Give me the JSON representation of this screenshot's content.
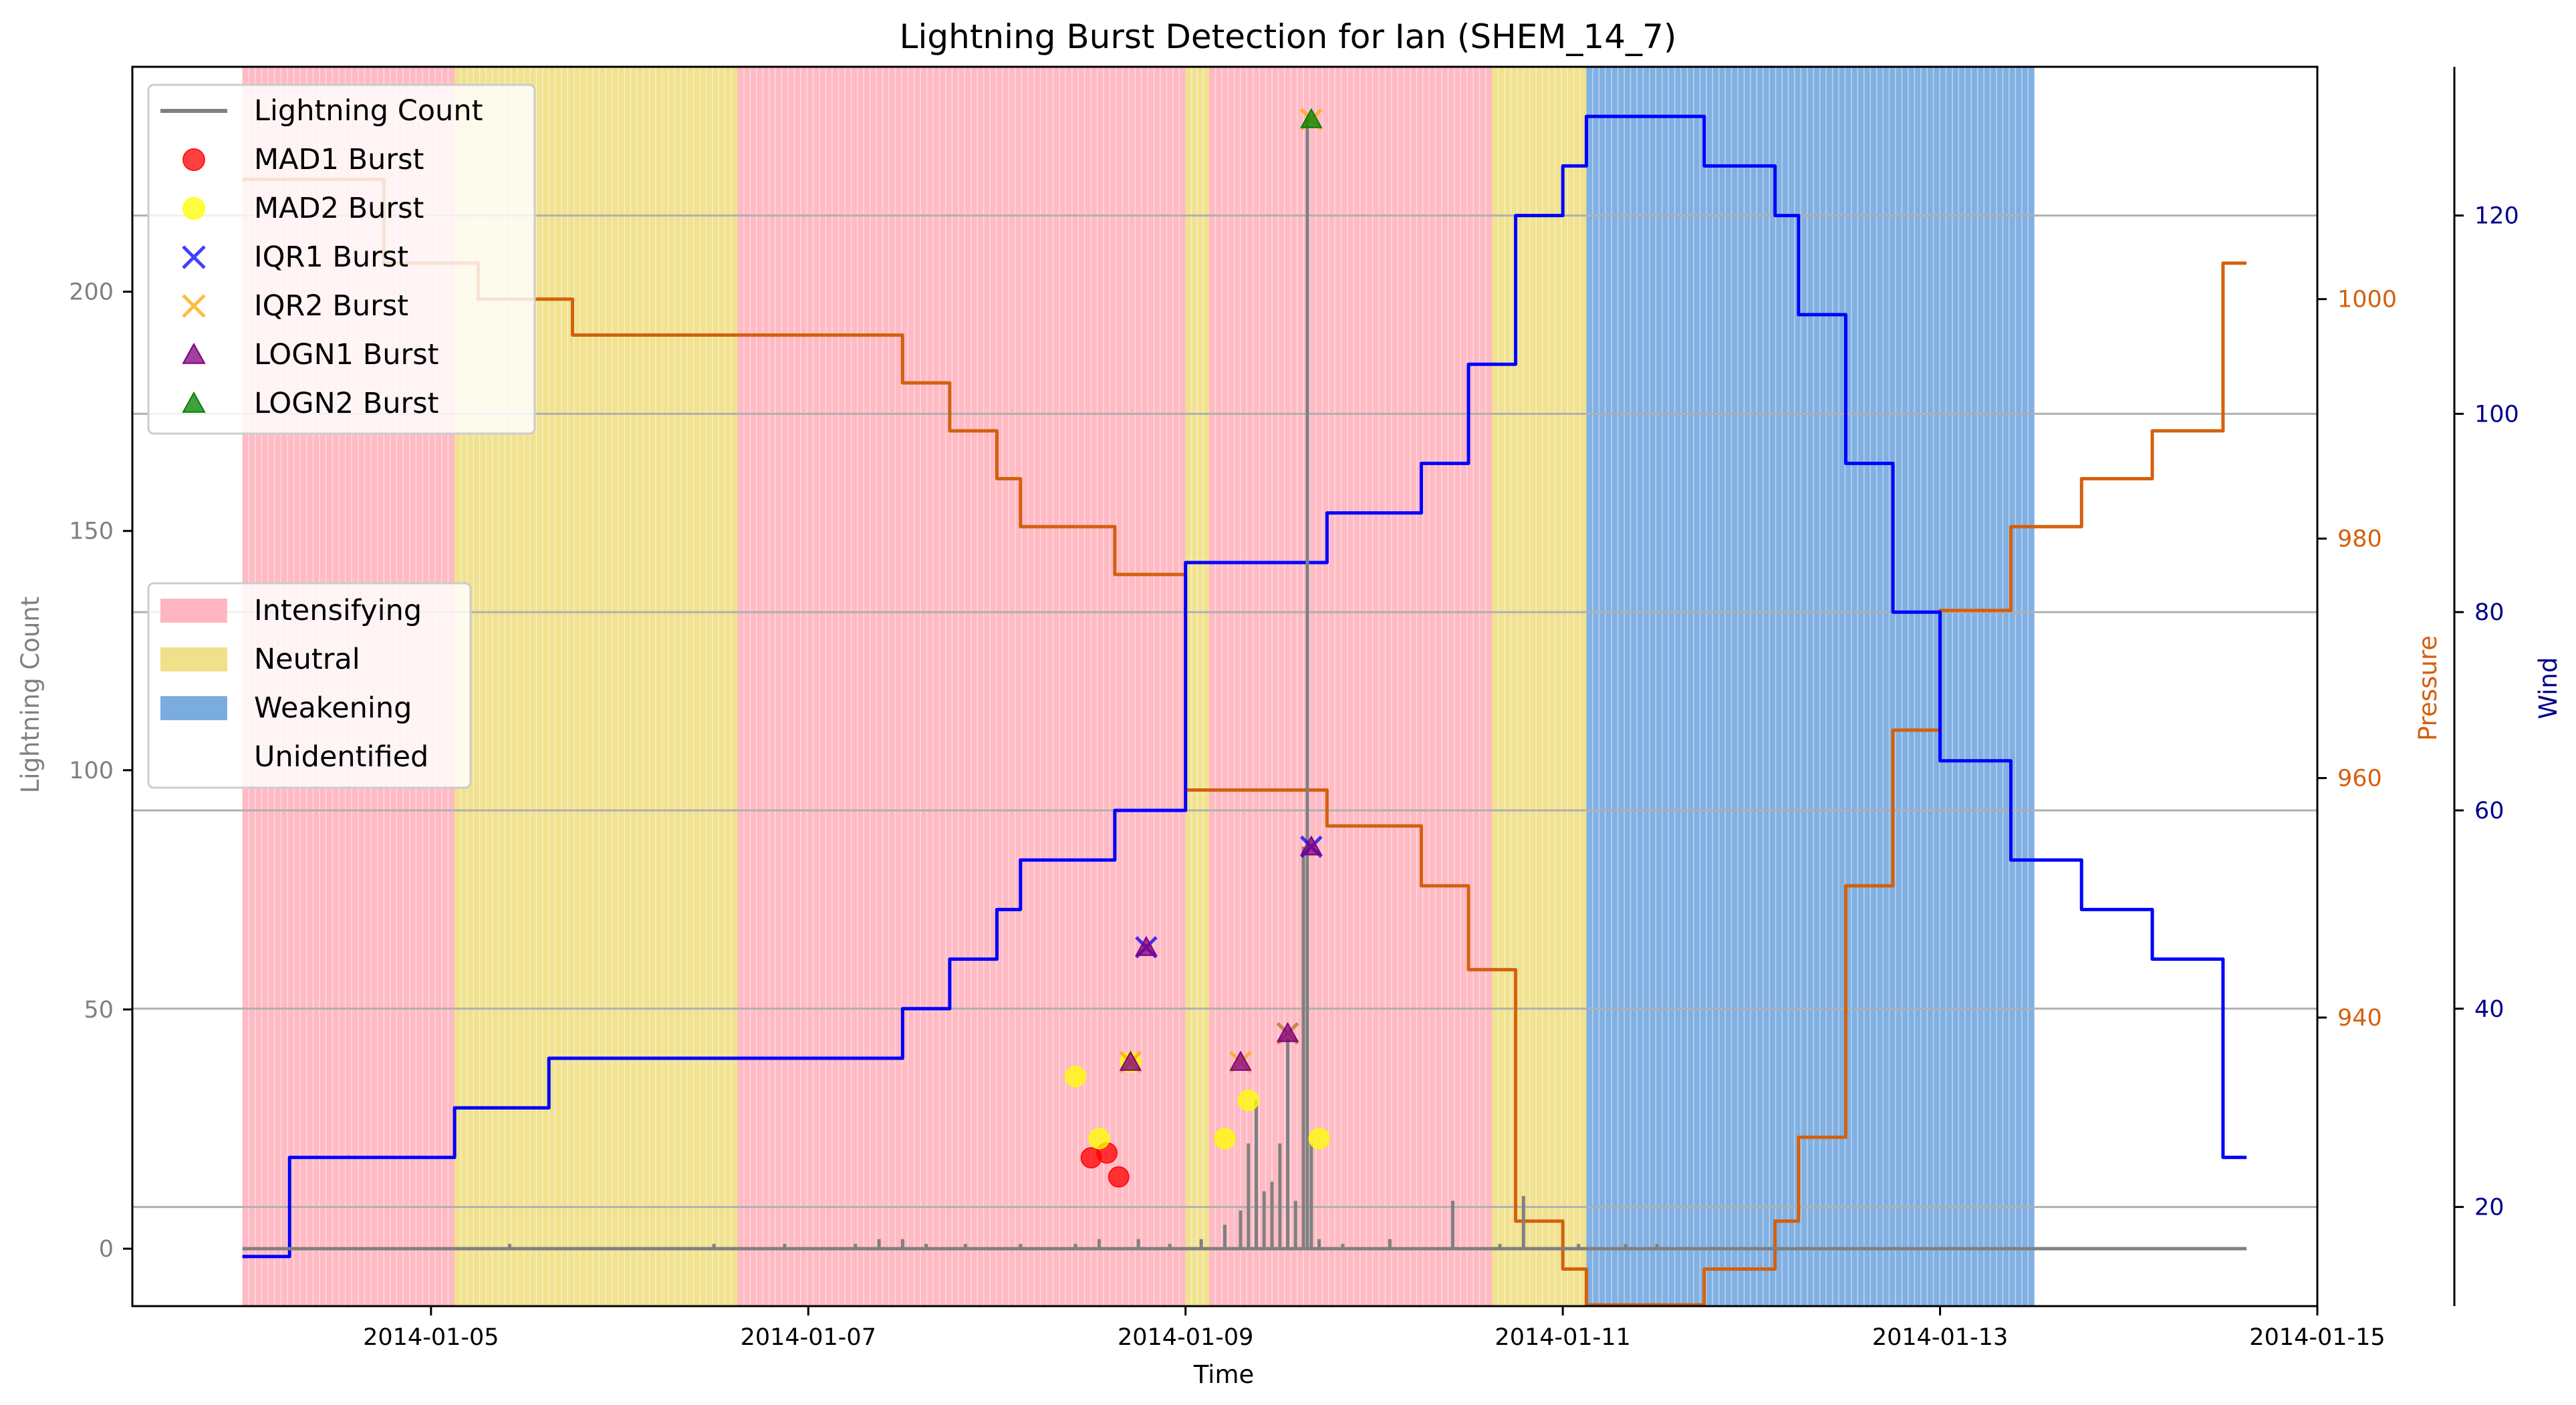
{
  "chart_data": {
    "type": "line",
    "title": "Lightning Burst Detection for Ian (SHEM_14_7)",
    "xlabel": "Time",
    "ylabel_left": "Lightning Count",
    "ylabel_pressure": "Pressure",
    "ylabel_wind": "Wind",
    "xlim": [
      "2014-01-03 10:00",
      "2014-01-15 00:00"
    ],
    "xticks": [
      "2014-01-05",
      "2014-01-07",
      "2014-01-09",
      "2014-01-11",
      "2014-01-13",
      "2014-01-15"
    ],
    "ylim_left": [
      -12,
      247
    ],
    "yticks_left": [
      0,
      50,
      100,
      150,
      200
    ],
    "ylim_pressure": [
      915.9,
      1019.4
    ],
    "yticks_pressure": [
      940,
      960,
      980,
      1000
    ],
    "ylim_wind": [
      10,
      135
    ],
    "yticks_wind": [
      20,
      40,
      60,
      80,
      100,
      120
    ],
    "grid": "horizontal",
    "colors": {
      "lightning": "#808080",
      "pressure": "#d4600d",
      "wind": "#0000ff",
      "pressure_axis": "#d4600d",
      "wind_axis": "#00008b",
      "intensifying": "#ffb6c1",
      "neutral": "#f0e08a",
      "weakening": "#7aace0"
    },
    "phase_legend": [
      "Intensifying",
      "Neutral",
      "Weakening",
      "Unidentified"
    ],
    "phases": [
      {
        "phase": "Intensifying",
        "start": "2014-01-04 00:00",
        "end": "2014-01-05 03:00"
      },
      {
        "phase": "Neutral",
        "start": "2014-01-05 03:00",
        "end": "2014-01-06 15:00"
      },
      {
        "phase": "Intensifying",
        "start": "2014-01-06 15:00",
        "end": "2014-01-09 00:00"
      },
      {
        "phase": "Neutral",
        "start": "2014-01-09 00:00",
        "end": "2014-01-09 03:00"
      },
      {
        "phase": "Intensifying",
        "start": "2014-01-09 03:00",
        "end": "2014-01-10 15:00"
      },
      {
        "phase": "Neutral",
        "start": "2014-01-10 15:00",
        "end": "2014-01-11 03:00"
      },
      {
        "phase": "Weakening",
        "start": "2014-01-11 03:00",
        "end": "2014-01-13 12:00"
      }
    ],
    "series": [
      {
        "name": "Pressure",
        "axis": "pressure",
        "points": [
          [
            "2014-01-04 00:00",
            1010
          ],
          [
            "2014-01-04 18:00",
            1003
          ],
          [
            "2014-01-05 06:00",
            1000
          ],
          [
            "2014-01-05 18:00",
            997
          ],
          [
            "2014-01-07 12:00",
            993
          ],
          [
            "2014-01-07 18:00",
            989
          ],
          [
            "2014-01-08 00:00",
            985
          ],
          [
            "2014-01-08 03:00",
            981
          ],
          [
            "2014-01-08 15:00",
            977
          ],
          [
            "2014-01-09 00:00",
            959
          ],
          [
            "2014-01-09 18:00",
            956
          ],
          [
            "2014-01-10 06:00",
            951
          ],
          [
            "2014-01-10 12:00",
            944
          ],
          [
            "2014-01-10 18:00",
            923
          ],
          [
            "2014-01-11 00:00",
            919
          ],
          [
            "2014-01-11 03:00",
            916
          ],
          [
            "2014-01-11 18:00",
            919
          ],
          [
            "2014-01-12 03:00",
            923
          ],
          [
            "2014-01-12 06:00",
            930
          ],
          [
            "2014-01-12 12:00",
            951
          ],
          [
            "2014-01-12 18:00",
            964
          ],
          [
            "2014-01-13 00:00",
            974
          ],
          [
            "2014-01-13 09:00",
            981
          ],
          [
            "2014-01-13 18:00",
            985
          ],
          [
            "2014-01-14 03:00",
            989
          ],
          [
            "2014-01-14 12:00",
            1003
          ],
          [
            "2014-01-14 15:00",
            1003
          ]
        ]
      },
      {
        "name": "Wind",
        "axis": "wind",
        "points": [
          [
            "2014-01-04 00:00",
            15
          ],
          [
            "2014-01-04 06:00",
            25
          ],
          [
            "2014-01-05 03:00",
            30
          ],
          [
            "2014-01-05 15:00",
            35
          ],
          [
            "2014-01-07 12:00",
            40
          ],
          [
            "2014-01-07 18:00",
            45
          ],
          [
            "2014-01-08 00:00",
            50
          ],
          [
            "2014-01-08 03:00",
            55
          ],
          [
            "2014-01-08 15:00",
            60
          ],
          [
            "2014-01-09 00:00",
            85
          ],
          [
            "2014-01-09 18:00",
            90
          ],
          [
            "2014-01-10 06:00",
            95
          ],
          [
            "2014-01-10 12:00",
            105
          ],
          [
            "2014-01-10 18:00",
            120
          ],
          [
            "2014-01-11 00:00",
            125
          ],
          [
            "2014-01-11 03:00",
            130
          ],
          [
            "2014-01-11 18:00",
            125
          ],
          [
            "2014-01-12 03:00",
            120
          ],
          [
            "2014-01-12 06:00",
            110
          ],
          [
            "2014-01-12 12:00",
            95
          ],
          [
            "2014-01-12 18:00",
            80
          ],
          [
            "2014-01-13 00:00",
            65
          ],
          [
            "2014-01-13 09:00",
            55
          ],
          [
            "2014-01-13 18:00",
            50
          ],
          [
            "2014-01-14 03:00",
            45
          ],
          [
            "2014-01-14 12:00",
            25
          ],
          [
            "2014-01-14 15:00",
            25
          ]
        ]
      },
      {
        "name": "Lightning Count",
        "axis": "left",
        "baseline": 0,
        "spikes": [
          [
            "2014-01-05 10:00",
            1
          ],
          [
            "2014-01-06 12:00",
            1
          ],
          [
            "2014-01-06 21:00",
            1
          ],
          [
            "2014-01-07 06:00",
            1
          ],
          [
            "2014-01-07 09:00",
            2
          ],
          [
            "2014-01-07 12:00",
            2
          ],
          [
            "2014-01-07 15:00",
            1
          ],
          [
            "2014-01-07 20:00",
            1
          ],
          [
            "2014-01-08 03:00",
            1
          ],
          [
            "2014-01-08 10:00",
            1
          ],
          [
            "2014-01-08 13:00",
            2
          ],
          [
            "2014-01-08 18:00",
            2
          ],
          [
            "2014-01-08 22:00",
            1
          ],
          [
            "2014-01-09 02:00",
            2
          ],
          [
            "2014-01-09 05:00",
            5
          ],
          [
            "2014-01-09 07:00",
            8
          ],
          [
            "2014-01-09 08:00",
            22
          ],
          [
            "2014-01-09 09:00",
            31
          ],
          [
            "2014-01-09 10:00",
            12
          ],
          [
            "2014-01-09 11:00",
            14
          ],
          [
            "2014-01-09 12:00",
            22
          ],
          [
            "2014-01-09 13:00",
            44
          ],
          [
            "2014-01-09 14:00",
            10
          ],
          [
            "2014-01-09 15:00",
            84
          ],
          [
            "2014-01-09 15:30",
            236
          ],
          [
            "2014-01-09 16:00",
            22
          ],
          [
            "2014-01-09 17:00",
            2
          ],
          [
            "2014-01-09 20:00",
            1
          ],
          [
            "2014-01-10 02:00",
            2
          ],
          [
            "2014-01-10 10:00",
            10
          ],
          [
            "2014-01-10 16:00",
            1
          ],
          [
            "2014-01-10 19:00",
            11
          ],
          [
            "2014-01-11 02:00",
            1
          ],
          [
            "2014-01-11 08:00",
            1
          ],
          [
            "2014-01-11 12:00",
            1
          ]
        ]
      }
    ],
    "burst_legend": [
      "Lightning Count",
      "MAD1 Burst",
      "MAD2 Burst",
      "IQR1 Burst",
      "IQR2 Burst",
      "LOGN1 Burst",
      "LOGN2 Burst"
    ],
    "bursts": [
      {
        "name": "MAD1 Burst",
        "marker": "circle",
        "color": "#ff0000",
        "points": [
          [
            "2014-01-08 12:00",
            19
          ],
          [
            "2014-01-08 14:00",
            20
          ],
          [
            "2014-01-08 15:30",
            15
          ]
        ]
      },
      {
        "name": "MAD2 Burst",
        "marker": "circle",
        "color": "#ffff00",
        "points": [
          [
            "2014-01-08 10:00",
            36
          ],
          [
            "2014-01-08 13:00",
            23
          ],
          [
            "2014-01-08 17:00",
            39
          ],
          [
            "2014-01-09 05:00",
            23
          ],
          [
            "2014-01-09 08:00",
            31
          ],
          [
            "2014-01-09 17:00",
            23
          ]
        ]
      },
      {
        "name": "IQR1 Burst",
        "marker": "x",
        "color": "#0000ff",
        "points": [
          [
            "2014-01-08 19:00",
            63
          ],
          [
            "2014-01-09 13:00",
            45
          ],
          [
            "2014-01-09 16:00",
            84
          ]
        ]
      },
      {
        "name": "IQR2 Burst",
        "marker": "x",
        "color": "#ffa500",
        "points": [
          [
            "2014-01-08 17:00",
            39
          ],
          [
            "2014-01-09 07:00",
            39
          ],
          [
            "2014-01-09 13:00",
            45
          ],
          [
            "2014-01-09 16:00",
            236
          ]
        ]
      },
      {
        "name": "LOGN1 Burst",
        "marker": "triangle",
        "color": "#800080",
        "points": [
          [
            "2014-01-08 17:00",
            39
          ],
          [
            "2014-01-08 19:00",
            63
          ],
          [
            "2014-01-09 07:00",
            39
          ],
          [
            "2014-01-09 13:00",
            45
          ],
          [
            "2014-01-09 16:00",
            84
          ]
        ]
      },
      {
        "name": "LOGN2 Burst",
        "marker": "triangle",
        "color": "#008000",
        "points": [
          [
            "2014-01-09 16:00",
            236
          ]
        ]
      }
    ]
  }
}
